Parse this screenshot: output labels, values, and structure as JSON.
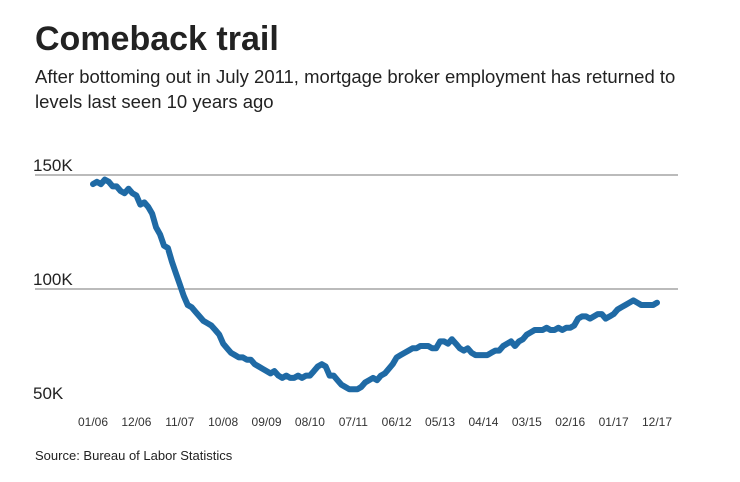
{
  "chart_data": {
    "type": "line",
    "title": "Comeback trail",
    "subtitle": "After bottoming out in July 2011, mortgage broker employment has returned to levels last seen 10 years ago",
    "source": "Source: Bureau of Labor Statistics",
    "color": "#1f6aa5",
    "grid": true,
    "ylim": [
      50,
      150
    ],
    "yticks": [
      {
        "value": 50,
        "label": "50K"
      },
      {
        "value": 100,
        "label": "100K"
      },
      {
        "value": 150,
        "label": "150K"
      }
    ],
    "categories": [
      "01/06",
      null,
      null,
      null,
      null,
      null,
      null,
      null,
      null,
      null,
      null,
      "12/06",
      null,
      null,
      null,
      null,
      null,
      null,
      null,
      null,
      null,
      null,
      "11/07",
      null,
      null,
      null,
      null,
      null,
      null,
      null,
      null,
      null,
      null,
      "10/08",
      null,
      null,
      null,
      null,
      null,
      null,
      null,
      null,
      null,
      null,
      "09/09",
      null,
      null,
      null,
      null,
      null,
      null,
      null,
      null,
      null,
      null,
      "08/10",
      null,
      null,
      null,
      null,
      null,
      null,
      null,
      null,
      null,
      null,
      "07/11",
      null,
      null,
      null,
      null,
      null,
      null,
      null,
      null,
      null,
      null,
      "06/12",
      null,
      null,
      null,
      null,
      null,
      null,
      null,
      null,
      null,
      null,
      "05/13",
      null,
      null,
      null,
      null,
      null,
      null,
      null,
      null,
      null,
      null,
      "04/14",
      null,
      null,
      null,
      null,
      null,
      null,
      null,
      null,
      null,
      null,
      "03/15",
      null,
      null,
      null,
      null,
      null,
      null,
      null,
      null,
      null,
      null,
      "02/16",
      null,
      null,
      null,
      null,
      null,
      null,
      null,
      null,
      null,
      null,
      "01/17",
      null,
      null,
      null,
      null,
      null,
      null,
      null,
      null,
      null,
      null,
      "12/17"
    ],
    "values": [
      146,
      147,
      146,
      148,
      147,
      145,
      145,
      143,
      142,
      144,
      142,
      141,
      137,
      138,
      136,
      133,
      127,
      124,
      119,
      118,
      112,
      107,
      102,
      97,
      93,
      92,
      90,
      88,
      86,
      85,
      84,
      82,
      80,
      76,
      74,
      72,
      71,
      70,
      70,
      69,
      69,
      67,
      66,
      65,
      64,
      63,
      64,
      62,
      61,
      62,
      61,
      61,
      62,
      61,
      62,
      62,
      64,
      66,
      67,
      66,
      62,
      62,
      60,
      58,
      57,
      56,
      56,
      56,
      57,
      59,
      60,
      61,
      60,
      62,
      63,
      65,
      67,
      70,
      71,
      72,
      73,
      74,
      74,
      75,
      75,
      75,
      74,
      74,
      77,
      77,
      76,
      78,
      76,
      74,
      73,
      74,
      72,
      71,
      71,
      71,
      71,
      72,
      73,
      73,
      75,
      76,
      77,
      75,
      77,
      78,
      80,
      81,
      82,
      82,
      82,
      83,
      82,
      82,
      83,
      82,
      83,
      83,
      84,
      87,
      88,
      88,
      87,
      88,
      89,
      89,
      87,
      88,
      89,
      91,
      92,
      93,
      94,
      95,
      94,
      93,
      93,
      93,
      93,
      94
    ]
  }
}
